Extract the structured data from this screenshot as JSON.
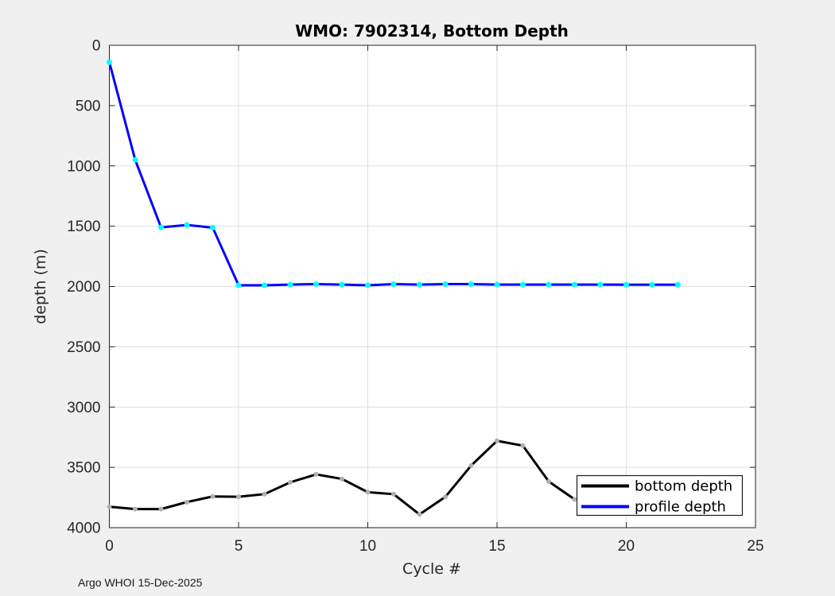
{
  "figure": {
    "background_color": "#f0f0f0",
    "plot_background_color": "#ffffff",
    "grid_color": "#e0e0e0",
    "axis_color": "#262626"
  },
  "chart_data": {
    "type": "line",
    "title": "WMO: 7902314, Bottom Depth",
    "xlabel": "Cycle #",
    "ylabel": "depth (m)",
    "xlim": [
      0,
      25
    ],
    "ylim": [
      0,
      4000
    ],
    "y_axis_reversed": true,
    "grid": true,
    "xticks": [
      0,
      5,
      10,
      15,
      20,
      25
    ],
    "yticks": [
      0,
      500,
      1000,
      1500,
      2000,
      2500,
      3000,
      3500,
      4000
    ],
    "legend_position": "lower-right-inside",
    "series": [
      {
        "name": "bottom depth",
        "color": "#000000",
        "marker_color": "#b0b0b0",
        "x": [
          0,
          1,
          2,
          3,
          4,
          5,
          6,
          7,
          8,
          9,
          10,
          11,
          12,
          13,
          14,
          15,
          16,
          17,
          18
        ],
        "values": [
          3826,
          3846,
          3846,
          3788,
          3741,
          3744,
          3722,
          3624,
          3558,
          3596,
          3706,
          3722,
          3890,
          3745,
          3485,
          3280,
          3320,
          3617,
          3765
        ]
      },
      {
        "name": "profile depth",
        "color": "#0000ff",
        "marker_color": "#00ffff",
        "x": [
          0,
          1,
          2,
          3,
          4,
          5,
          6,
          7,
          8,
          9,
          10,
          11,
          12,
          13,
          14,
          15,
          16,
          17,
          18,
          19,
          20,
          21,
          22
        ],
        "values": [
          140,
          950,
          1510,
          1490,
          1512,
          1990,
          1990,
          1984,
          1980,
          1984,
          1990,
          1980,
          1984,
          1980,
          1980,
          1984,
          1984,
          1984,
          1984,
          1984,
          1985,
          1985,
          1985
        ]
      }
    ]
  },
  "footer": {
    "text": "Argo WHOI 15-Dec-2025"
  }
}
